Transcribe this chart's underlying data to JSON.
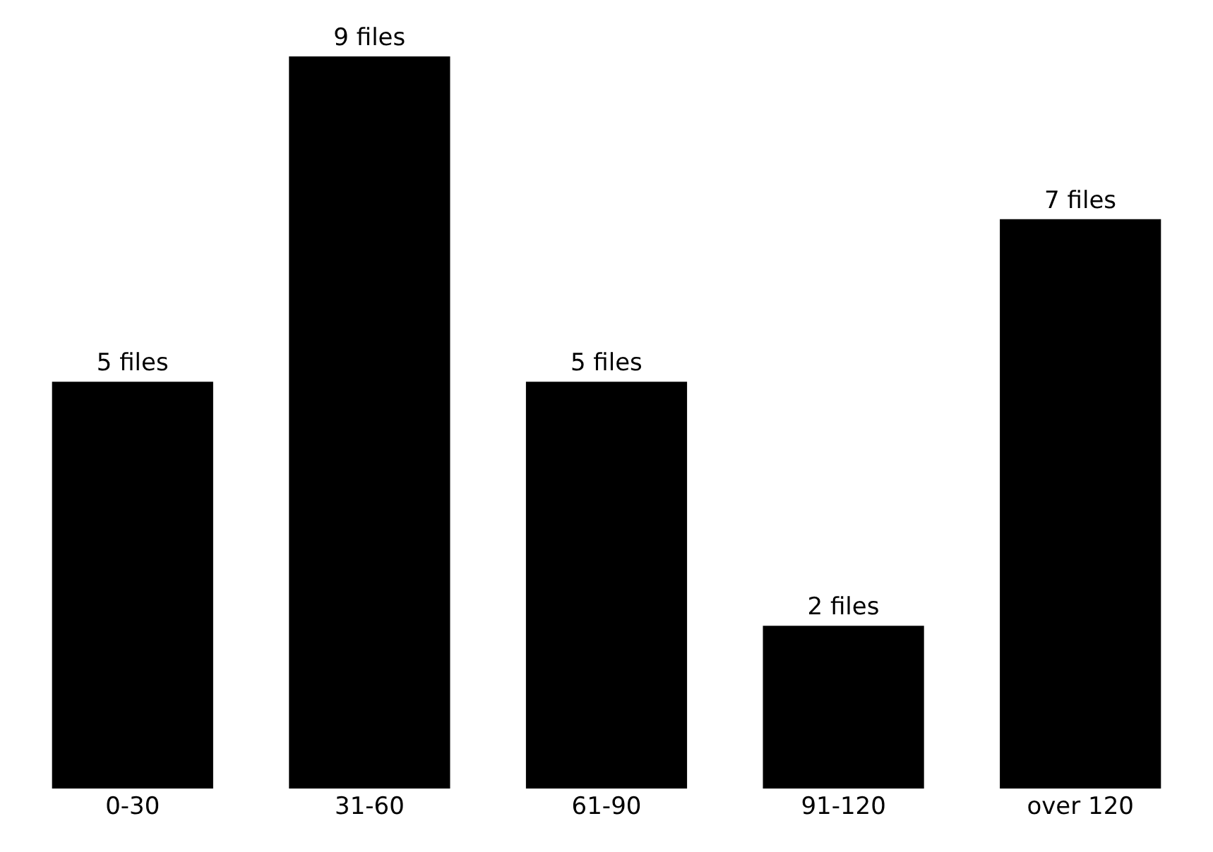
{
  "chart_data": {
    "type": "bar",
    "categories": [
      "0-30",
      "31-60",
      "61-90",
      "91-120",
      "over 120"
    ],
    "values": [
      5,
      9,
      5,
      2,
      7
    ],
    "value_labels": [
      "5 files",
      "9 files",
      "5 files",
      "2 files",
      "7 files"
    ],
    "color": "#000000"
  }
}
